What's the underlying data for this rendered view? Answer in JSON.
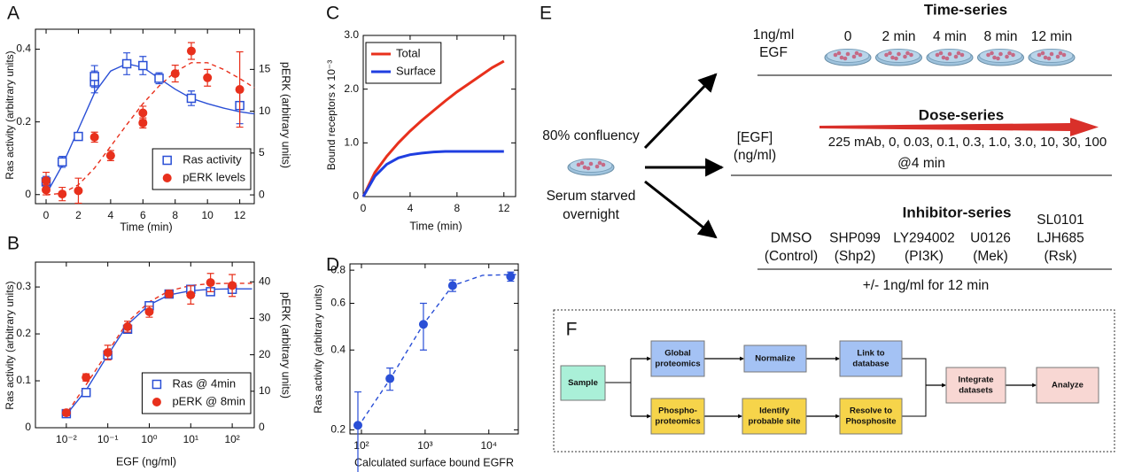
{
  "chart_data": [
    {
      "type": "scatter",
      "panel": "A",
      "xlabel": "Time (min)",
      "ylabel": "Ras activity (arbitrary units)",
      "y2label": "pERK (arbitrary units)",
      "xlim": [
        -0.66,
        12.9
      ],
      "xticks": [
        0,
        2,
        4,
        6,
        8,
        10,
        12
      ],
      "ylim": [
        -0.025,
        0.455
      ],
      "yticks": [
        0,
        0.2,
        0.4
      ],
      "y2lim": [
        -1.05,
        19.8
      ],
      "y2ticks": [
        0,
        5,
        10,
        15
      ],
      "legend": "lower right",
      "series": [
        {
          "name": "Ras activity",
          "color": "#2a4fd6",
          "marker": "square",
          "x": [
            0,
            1,
            2,
            3,
            3,
            5,
            6,
            7,
            9,
            12
          ],
          "values": [
            0.035,
            0.09,
            0.16,
            0.31,
            0.325,
            0.36,
            0.355,
            0.32,
            0.265,
            0.245
          ],
          "errors": [
            0.015,
            0.015,
            0.01,
            0.03,
            0.03,
            0.03,
            0.025,
            0.015,
            0.02,
            0.05
          ]
        },
        {
          "name": "pERK levels",
          "color": "#e8301c",
          "marker": "circle",
          "axis": "y2",
          "x": [
            0,
            0,
            1,
            2,
            3,
            4,
            6,
            6,
            8,
            9,
            10,
            12
          ],
          "values": [
            1.7,
            0.6,
            0.1,
            0.5,
            6.9,
            4.7,
            9.8,
            8.6,
            14.5,
            17.2,
            14,
            12.6
          ],
          "errors": [
            1,
            0.6,
            0.8,
            1.5,
            0.6,
            0.6,
            0.8,
            0.6,
            1,
            1,
            1,
            4.5
          ]
        },
        {
          "color": "#2a4fd6",
          "style": "solid",
          "x": [
            0,
            1,
            2,
            3,
            4,
            5,
            6,
            7,
            8,
            9,
            10,
            11,
            12,
            12.9
          ],
          "values": [
            0,
            0.08,
            0.18,
            0.28,
            0.34,
            0.36,
            0.35,
            0.32,
            0.29,
            0.265,
            0.25,
            0.238,
            0.228,
            0.222
          ]
        },
        {
          "color": "#e8301c",
          "style": "dashed",
          "axis": "y2",
          "x": [
            0,
            1,
            2,
            3,
            4,
            5,
            6,
            7,
            8,
            9,
            10,
            11,
            12,
            12.9
          ],
          "values": [
            0,
            0.2,
            1.2,
            3.2,
            5.8,
            8.4,
            10.9,
            13.0,
            14.7,
            15.8,
            15.8,
            15.0,
            13.9,
            12.8
          ]
        }
      ]
    },
    {
      "type": "scatter",
      "panel": "B",
      "xlabel": "EGF (ng/ml)",
      "ylabel": "Ras activity (arbitrary units)",
      "y2label": "pERK (arbitrary units)",
      "xscale": "log",
      "xlim": [
        0.0018,
        340
      ],
      "xticks": [
        {
          "value": 0.01,
          "label": "10⁻²"
        },
        {
          "value": 0.1,
          "label": "10⁻¹"
        },
        {
          "value": 1,
          "label": "10⁰"
        },
        {
          "value": 10,
          "label": "10¹"
        },
        {
          "value": 100,
          "label": "10²"
        }
      ],
      "ylim": [
        0,
        0.353
      ],
      "yticks": [
        0,
        0.1,
        0.2,
        0.3
      ],
      "y2lim": [
        0,
        45.4
      ],
      "y2ticks": [
        0,
        10,
        20,
        30,
        40
      ],
      "legend": "lower right",
      "series": [
        {
          "name": "Ras @ 4min",
          "color": "#2a4fd6",
          "marker": "square",
          "x": [
            0.01,
            0.03,
            0.1,
            0.3,
            1,
            3,
            10,
            30,
            100
          ],
          "values": [
            0.03,
            0.075,
            0.155,
            0.21,
            0.26,
            0.285,
            0.295,
            0.29,
            0.295
          ],
          "errors": [
            0.004,
            0.005,
            0.005,
            0.006,
            0.006,
            0.006,
            0.006,
            0.006,
            0.006
          ]
        },
        {
          "name": "pERK @ 8min",
          "color": "#e8301c",
          "marker": "circle",
          "axis": "y2",
          "x": [
            0.01,
            0.03,
            0.1,
            0.3,
            1,
            3,
            10,
            30,
            100
          ],
          "values": [
            4.1,
            13.8,
            20.6,
            27.7,
            31.8,
            36.7,
            36.4,
            39.8,
            39
          ],
          "errors": [
            0.8,
            1,
            2,
            1.5,
            1.5,
            1,
            2.5,
            2.5,
            3
          ]
        },
        {
          "color": "#2a4fd6",
          "style": "solid",
          "x": [
            0.008,
            0.01,
            0.03,
            0.1,
            0.3,
            1,
            3,
            10,
            30,
            100,
            300
          ],
          "values": [
            0.022,
            0.028,
            0.08,
            0.155,
            0.22,
            0.262,
            0.283,
            0.292,
            0.295,
            0.296,
            0.296
          ]
        },
        {
          "color": "#e8301c",
          "style": "dashed",
          "axis": "y2",
          "x": [
            0.008,
            0.01,
            0.03,
            0.1,
            0.3,
            1,
            3,
            10,
            30,
            100,
            300
          ],
          "values": [
            3.0,
            3.8,
            11.8,
            20.8,
            29,
            34.5,
            37.5,
            39,
            39.5,
            39.6,
            39.6
          ]
        }
      ]
    },
    {
      "type": "line",
      "panel": "C",
      "xlabel": "Time (min)",
      "ylabel": "Bound receptors x 10⁻³",
      "xlim": [
        0,
        13
      ],
      "xticks": [
        0,
        4,
        8,
        12
      ],
      "ylim": [
        0,
        3
      ],
      "yticks": [
        0,
        {
          "value": 1,
          "label": "1.0"
        },
        {
          "value": 2,
          "label": "2.0"
        },
        {
          "value": 3,
          "label": "3.0"
        }
      ],
      "legend": "upper left",
      "series": [
        {
          "name": "Total",
          "color": "#e8301c",
          "style": "solid",
          "x": [
            0,
            1,
            2,
            3,
            4,
            5,
            6,
            7,
            8,
            9,
            10,
            11,
            12
          ],
          "values": [
            0,
            0.45,
            0.75,
            1.0,
            1.22,
            1.42,
            1.6,
            1.78,
            1.95,
            2.1,
            2.25,
            2.4,
            2.52
          ]
        },
        {
          "name": "Surface",
          "color": "#1f3ee0",
          "style": "solid",
          "x": [
            0,
            1,
            2,
            3,
            4,
            5,
            6,
            7,
            8,
            9,
            10,
            11,
            12
          ],
          "values": [
            0,
            0.38,
            0.6,
            0.72,
            0.78,
            0.81,
            0.83,
            0.84,
            0.84,
            0.84,
            0.84,
            0.84,
            0.84
          ]
        }
      ]
    },
    {
      "type": "scatter",
      "panel": "D",
      "xlabel": "Calculated surface bound EGFR",
      "ylabel": "Ras activity (arbitrary units)",
      "xscale": "log",
      "xlim": [
        66,
        29000
      ],
      "xticks": [
        {
          "value": 100,
          "label": "10²"
        },
        {
          "value": 1000,
          "label": "10³"
        },
        {
          "value": 10000,
          "label": "10⁴"
        }
      ],
      "yscale": "log",
      "ylim": [
        0.193,
        0.845
      ],
      "yticks": [
        0.2,
        0.4,
        0.6,
        0.8
      ],
      "series": [
        {
          "color": "#2a4fd6",
          "marker": "circle",
          "x": [
            88,
            280,
            940,
            2700,
            22000
          ],
          "values": [
            0.208,
            0.312,
            0.5,
            0.7,
            0.757
          ],
          "errors": [
            0.07,
            0.03,
            0.1,
            0.035,
            0.03
          ]
        },
        {
          "color": "#2a4fd6",
          "style": "dashed",
          "x": [
            88,
            280,
            940,
            2700,
            8000,
            22000,
            29000
          ],
          "values": [
            0.205,
            0.31,
            0.5,
            0.7,
            0.765,
            0.77,
            0.77
          ]
        }
      ]
    }
  ],
  "diagram_e": {
    "panel": "E",
    "time_series": {
      "title": "Time-series",
      "treatment": [
        "1ng/ml",
        "EGF"
      ],
      "times": [
        "0",
        "2 min",
        "4 min",
        "8 min",
        "12 min"
      ]
    },
    "dose_series": {
      "title": "Dose-series",
      "unit": [
        "[EGF]",
        "(ng/ml)"
      ],
      "doses": "225 mAb, 0, 0.03, 0.1, 0.3, 1.0, 3.0, 10, 30, 100",
      "time": "@4 min"
    },
    "start": {
      "above": "80% confluency",
      "below": [
        "Serum starved",
        "overnight"
      ]
    },
    "inhibitor_series": {
      "title": "Inhibitor-series",
      "inhibitors": [
        [
          "DMSO",
          "(Control)"
        ],
        [
          "SHP099",
          "(Shp2)"
        ],
        [
          "LY294002",
          "(PI3K)"
        ],
        [
          "U0126",
          "(Mek)"
        ],
        [
          "SL0101",
          "LJH685",
          "(Rsk)"
        ]
      ],
      "note": "+/- 1ng/ml for 12 min"
    }
  },
  "diagram_f": {
    "panel": "F",
    "nodes": [
      [
        "Sample"
      ],
      [
        "Global",
        "proteomics"
      ],
      [
        "Normalize"
      ],
      [
        "Link to",
        "database"
      ],
      [
        "Phospho-",
        "proteomics"
      ],
      [
        "Identify",
        "probable site"
      ],
      [
        "Resolve to",
        "Phosphosite"
      ],
      [
        "Integrate",
        "datasets"
      ],
      [
        "Analyze"
      ]
    ]
  }
}
